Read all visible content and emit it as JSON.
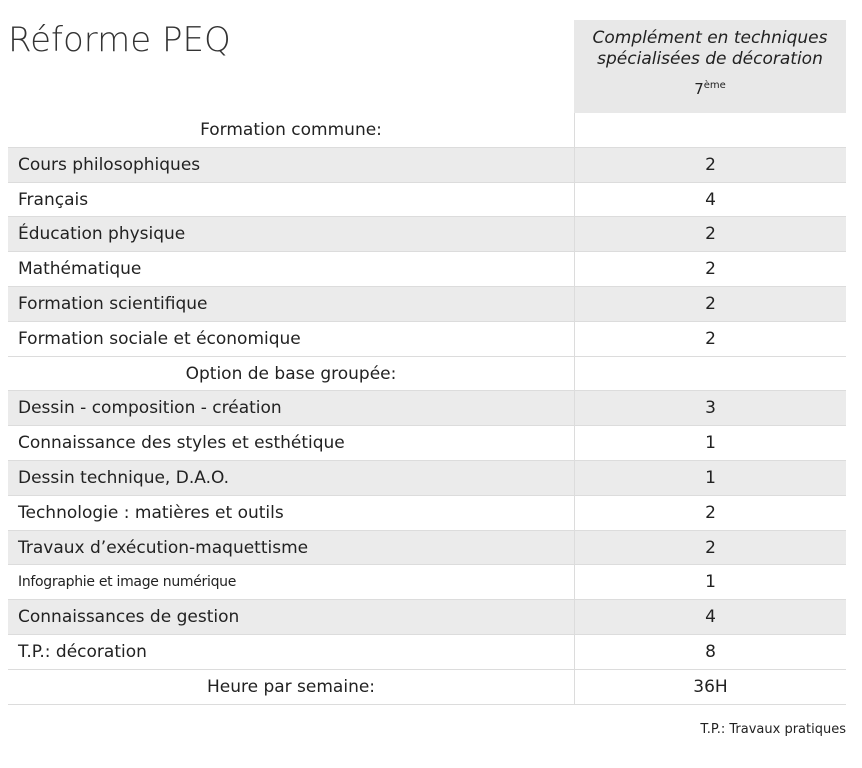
{
  "header": {
    "title": "Réforme PEQ",
    "column": "Complément en techniques spécialisées de décoration",
    "year": "7",
    "year_suffix": "ème"
  },
  "sections": [
    {
      "label": "Formation commune:",
      "rows": [
        [
          "Cours philosophiques",
          2
        ],
        [
          "Français",
          4
        ],
        [
          "Éducation physique",
          2
        ],
        [
          "Mathématique",
          2
        ],
        [
          "Formation scientifique",
          2
        ],
        [
          "Formation sociale et économique",
          2
        ]
      ]
    },
    {
      "label": "Option de base groupée:",
      "rows": [
        [
          "Dessin - composition - création",
          3
        ],
        [
          "Connaissance des styles et esthétique",
          1
        ],
        [
          "Dessin technique, D.A.O.",
          1
        ],
        [
          "Technologie : matières et outils",
          2
        ],
        [
          "Travaux d’exécution-maquettisme",
          2
        ],
        [
          "Infographie et image numérique",
          1
        ],
        [
          "Connaissances de gestion",
          4
        ],
        [
          "T.P.: décoration",
          8
        ]
      ]
    }
  ],
  "total": {
    "label": "Heure par semaine:",
    "value": "36H"
  },
  "footnote": "T.P.: Travaux pratiques"
}
